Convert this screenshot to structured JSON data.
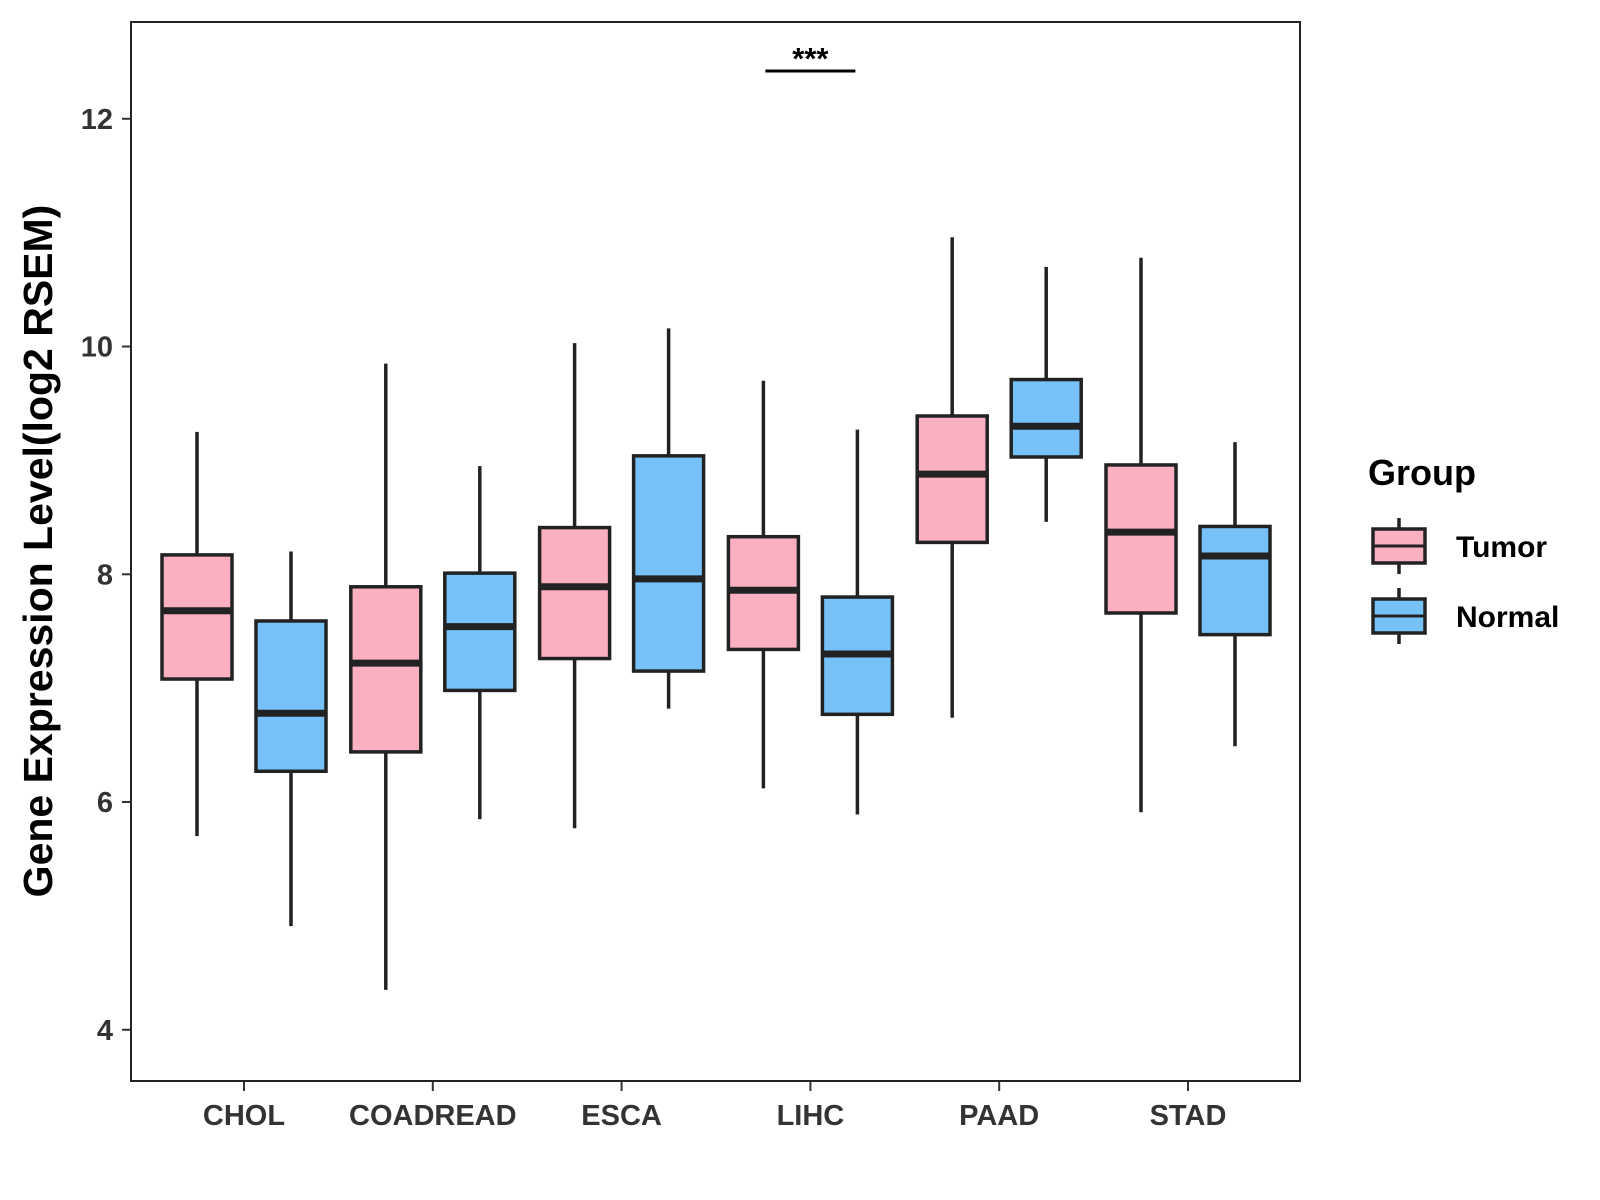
{
  "chart_data": {
    "type": "boxplot",
    "title": "",
    "xlabel": "",
    "ylabel": "Gene Expression Level(log2 RSEM)",
    "ylim": [
      3.55,
      12.85
    ],
    "yticks": [
      4,
      6,
      8,
      10,
      12
    ],
    "ytick_labels": [
      "4",
      "6",
      "8",
      "10",
      "12"
    ],
    "grid": false,
    "legend_position": "right",
    "categories": [
      "CHOL",
      "COADREAD",
      "ESCA",
      "LIHC",
      "PAAD",
      "STAD"
    ],
    "legend": {
      "title": "Group",
      "entries": [
        {
          "name": "Tumor",
          "color": "#FBB0C1"
        },
        {
          "name": "Normal",
          "color": "#76C1F7"
        }
      ]
    },
    "series": [
      {
        "name": "Tumor",
        "color": "#FBB0C1",
        "boxes": [
          {
            "min": 5.7,
            "q1": 7.08,
            "median": 7.68,
            "q3": 8.17,
            "max": 9.25
          },
          {
            "min": 4.35,
            "q1": 6.44,
            "median": 7.22,
            "q3": 7.89,
            "max": 9.85
          },
          {
            "min": 5.77,
            "q1": 7.26,
            "median": 7.89,
            "q3": 8.41,
            "max": 10.03
          },
          {
            "min": 6.12,
            "q1": 7.34,
            "median": 7.86,
            "q3": 8.33,
            "max": 9.7
          },
          {
            "min": 6.74,
            "q1": 8.28,
            "median": 8.88,
            "q3": 9.39,
            "max": 10.96
          },
          {
            "min": 5.91,
            "q1": 7.66,
            "median": 8.37,
            "q3": 8.96,
            "max": 10.78
          }
        ]
      },
      {
        "name": "Normal",
        "color": "#76C1F7",
        "boxes": [
          {
            "min": 4.91,
            "q1": 6.27,
            "median": 6.78,
            "q3": 7.59,
            "max": 8.2
          },
          {
            "min": 5.85,
            "q1": 6.98,
            "median": 7.54,
            "q3": 8.01,
            "max": 8.95
          },
          {
            "min": 6.82,
            "q1": 7.15,
            "median": 7.96,
            "q3": 9.04,
            "max": 10.16
          },
          {
            "min": 5.89,
            "q1": 6.77,
            "median": 7.3,
            "q3": 7.8,
            "max": 9.27
          },
          {
            "min": 8.46,
            "q1": 9.03,
            "median": 9.3,
            "q3": 9.71,
            "max": 10.7
          },
          {
            "min": 6.49,
            "q1": 7.47,
            "median": 8.16,
            "q3": 8.42,
            "max": 9.16
          }
        ]
      }
    ],
    "annotations": [
      {
        "text": "***",
        "category": "LIHC",
        "y": 12.42
      }
    ],
    "colors": {
      "tumor": "#FBB0C1",
      "normal": "#76C1F7",
      "stroke": "#222222",
      "axis": "#333333"
    }
  }
}
